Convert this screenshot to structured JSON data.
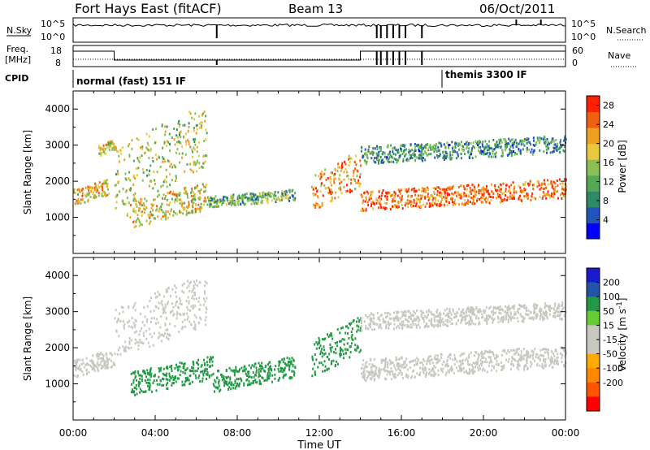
{
  "header": {
    "station": "Fort Hays East (fitACF)",
    "beam": "Beam 13",
    "date": "06/Oct/2011"
  },
  "noise_panel": {
    "left_label": "N.Sky",
    "right_label": "N.Search",
    "left_ticks": [
      "10^5",
      "10^0"
    ],
    "right_ticks": [
      "10^5",
      "10^0"
    ]
  },
  "freq_panel": {
    "left_label_1": "Freq.",
    "left_label_2": "[MHz]",
    "right_label": "Nave",
    "left_ticks": [
      "18",
      "8"
    ],
    "right_ticks": [
      "60",
      "0"
    ]
  },
  "cpid": {
    "label": "CPID",
    "modes": [
      {
        "name": "normal (fast) 151 IF",
        "start": "00:00"
      },
      {
        "name": "themis 3300 IF",
        "start": "18:00"
      }
    ]
  },
  "time_axis": {
    "label": "Time UT",
    "ticks": [
      "00:00",
      "04:00",
      "08:00",
      "12:00",
      "16:00",
      "20:00",
      "00:00"
    ]
  },
  "colors": {
    "power": [
      "#0000ff",
      "#2255bb",
      "#2f8a66",
      "#55a855",
      "#88c055",
      "#e8c840",
      "#f0a020",
      "#f06010",
      "#ff2000"
    ],
    "velocity": [
      "#ff0000",
      "#ff5500",
      "#ff8800",
      "#ffaa00",
      "#c8c8c0",
      "#c8c8c0",
      "#66cc33",
      "#229944",
      "#2255aa",
      "#1a1acc"
    ]
  },
  "chart_data": [
    {
      "type": "heatmap",
      "title": "Power",
      "ylabel": "Slant Range [km]",
      "xlabel": "",
      "ylim": [
        0,
        4500
      ],
      "y_ticks": [
        "1000",
        "2000",
        "3000",
        "4000"
      ],
      "colorbar_label": "Power [dB]",
      "colorbar_ticks": [
        "4",
        "8",
        "12",
        "16",
        "20",
        "24",
        "28"
      ],
      "colorbar_range": [
        0,
        30
      ],
      "echo_bands": [
        {
          "x": [
            0,
            1.7
          ],
          "range_km": [
            1350,
            2100
          ],
          "power_db": 20
        },
        {
          "x": [
            1.2,
            2.0
          ],
          "range_km": [
            2700,
            3200
          ],
          "power_db": 18
        },
        {
          "x": [
            2.0,
            6.5
          ],
          "range_km": [
            1200,
            4200
          ],
          "power_db": 16
        },
        {
          "x": [
            2.6,
            6.5
          ],
          "range_km": [
            700,
            2000
          ],
          "power_db": 18
        },
        {
          "x": [
            6.5,
            10.8
          ],
          "range_km": [
            1300,
            1800
          ],
          "power_db": 12
        },
        {
          "x": [
            11.6,
            14.0
          ],
          "range_km": [
            1200,
            2900
          ],
          "power_db": 22
        },
        {
          "x": [
            14.0,
            24.0
          ],
          "range_km": [
            1200,
            2100
          ],
          "power_db": 24
        },
        {
          "x": [
            14.0,
            24.0
          ],
          "range_km": [
            2500,
            3300
          ],
          "power_db": 10
        }
      ]
    },
    {
      "type": "heatmap",
      "title": "Velocity",
      "ylabel": "Slant Range [km]",
      "xlabel": "Time UT",
      "ylim": [
        0,
        4500
      ],
      "y_ticks": [
        "1000",
        "2000",
        "3000",
        "4000"
      ],
      "colorbar_label": "Velocity [m s^-1]",
      "colorbar_ticks": [
        "200",
        "100",
        "50",
        "15",
        "-15",
        "-50",
        "-100",
        "-200"
      ],
      "echo_bands": [
        {
          "x": [
            0,
            2.0
          ],
          "range_km": [
            1200,
            2000
          ],
          "velocity_ms": 0
        },
        {
          "x": [
            2.0,
            6.5
          ],
          "range_km": [
            1700,
            4100
          ],
          "velocity_ms": 0
        },
        {
          "x": [
            2.8,
            6.8
          ],
          "range_km": [
            700,
            1800
          ],
          "velocity_ms": 80
        },
        {
          "x": [
            6.8,
            10.8
          ],
          "range_km": [
            800,
            1800
          ],
          "velocity_ms": 60
        },
        {
          "x": [
            11.6,
            14.0
          ],
          "range_km": [
            1200,
            2900
          ],
          "velocity_ms": 60
        },
        {
          "x": [
            14.0,
            24.0
          ],
          "range_km": [
            1100,
            2100
          ],
          "velocity_ms": 0
        },
        {
          "x": [
            14.0,
            24.0
          ],
          "range_km": [
            2500,
            3300
          ],
          "velocity_ms": 0
        }
      ]
    }
  ]
}
